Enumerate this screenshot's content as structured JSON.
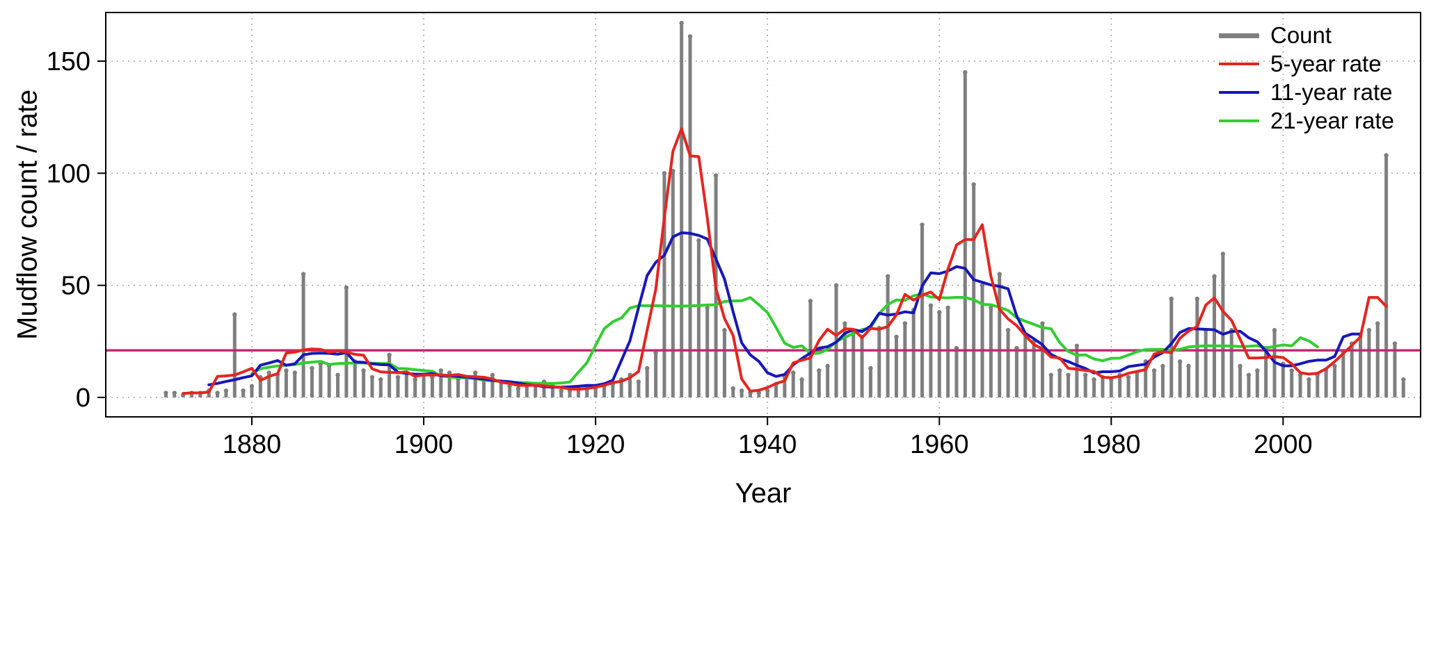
{
  "chart_data": {
    "type": "bar+line",
    "title": "",
    "xlabel": "Year",
    "ylabel": "Mudflow count / rate",
    "xticks": [
      1880,
      1900,
      1920,
      1940,
      1960,
      1980,
      2000
    ],
    "yticks": [
      0,
      50,
      100,
      150
    ],
    "xlim": [
      1863,
      2016
    ],
    "ylim": [
      0,
      171
    ],
    "grid": "dotted",
    "grid_color": "#a8a8a8",
    "legend_position": "top-right",
    "mean_line": {
      "value": 21,
      "color": "#c22b72"
    },
    "series": [
      {
        "name": "Count",
        "type": "bar",
        "color": "#7f7f7f"
      },
      {
        "name": "5-year rate",
        "type": "line",
        "color": "#e4251f",
        "window": 5
      },
      {
        "name": "11-year rate",
        "type": "line",
        "color": "#1717b8",
        "window": 11
      },
      {
        "name": "21-year rate",
        "type": "line",
        "color": "#32cd32",
        "window": 21
      }
    ],
    "year_start": 1870,
    "counts": [
      2,
      2,
      1,
      2,
      2,
      3,
      2,
      3,
      37,
      3,
      5,
      9,
      11,
      10,
      12,
      11,
      55,
      13,
      15,
      14,
      10,
      49,
      16,
      12,
      9,
      8,
      19,
      9,
      11,
      8,
      10,
      9,
      12,
      11,
      8,
      9,
      11,
      8,
      10,
      7,
      5,
      4,
      5,
      6,
      7,
      5,
      3,
      3,
      4,
      4,
      4,
      5,
      6,
      8,
      10,
      7,
      13,
      20,
      100,
      101,
      167,
      161,
      70,
      40,
      99,
      30,
      4,
      3,
      2,
      2,
      3,
      6,
      9,
      11,
      8,
      43,
      12,
      14,
      50,
      33,
      29,
      27,
      13,
      31,
      54,
      27,
      33,
      39,
      77,
      41,
      38,
      40,
      22,
      145,
      95,
      50,
      40,
      55,
      30,
      22,
      28,
      25,
      33,
      10,
      12,
      10,
      23,
      10,
      8,
      9,
      8,
      10,
      9,
      11,
      16,
      12,
      14,
      44,
      16,
      14,
      44,
      30,
      54,
      64,
      30,
      14,
      10,
      12,
      22,
      30,
      15,
      12,
      10,
      8,
      10,
      12,
      14,
      20,
      24,
      28,
      30,
      33,
      108,
      24,
      8
    ]
  }
}
